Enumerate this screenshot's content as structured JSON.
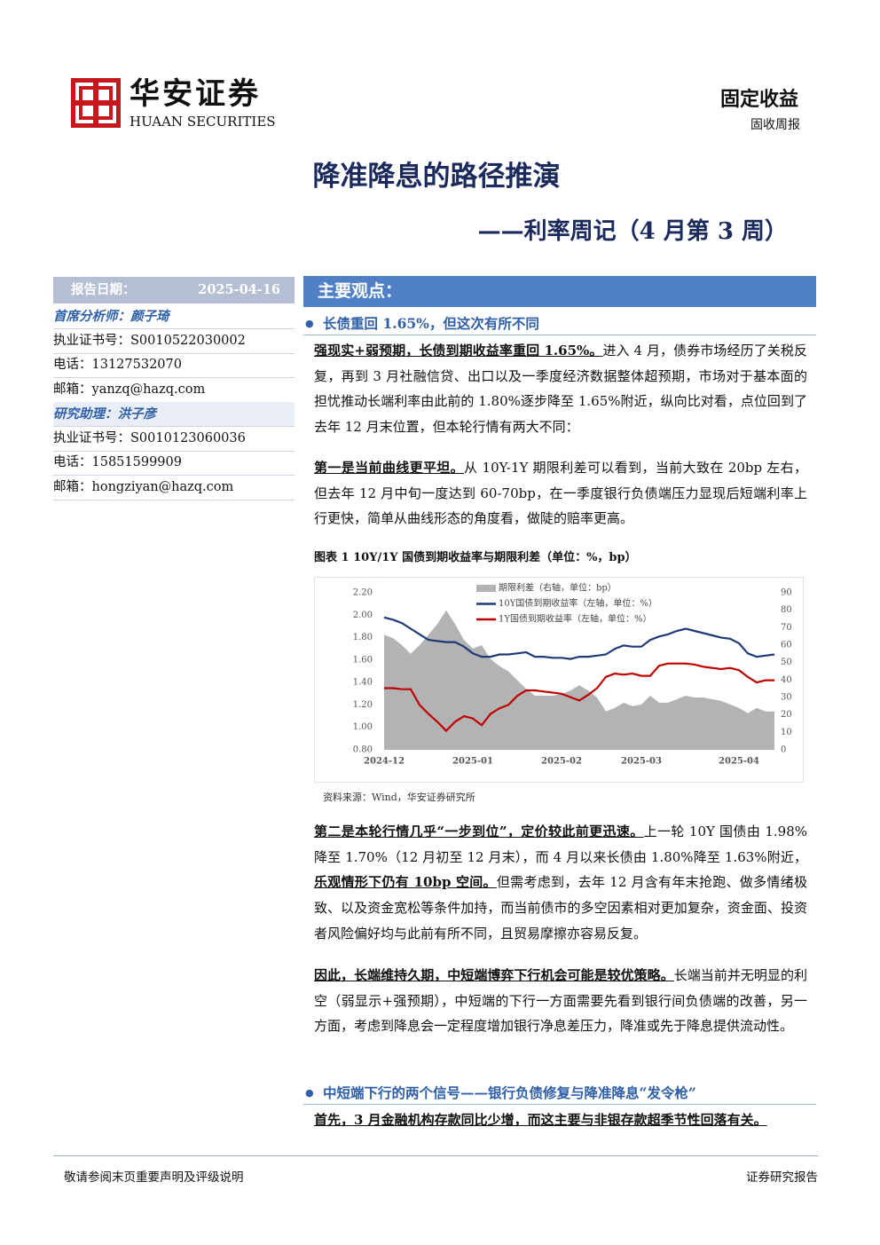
{
  "header": {
    "company_cn": "华安证券",
    "company_en": "HUAAN SECURITIES",
    "category": "固定收益",
    "report_type": "固收周报"
  },
  "title": "降准降息的路径推演",
  "subtitle": "——利率周记（4 月第 3 周）",
  "sidebar": {
    "date_label": "报告日期：",
    "date": "2025-04-16",
    "analyst": "首席分析师：颜子琦",
    "analyst_lines": [
      "执业证书号：S0010522030002",
      "电话：13127532070",
      "邮箱：yanzq@hazq.com"
    ],
    "assistant": "研究助理：洪子彦",
    "assistant_lines": [
      "执业证书号：S0010123060036",
      "电话：15851599909",
      "邮箱：hongziyan@hazq.com"
    ]
  },
  "main": {
    "heading": "主要观点：",
    "blocks": [
      {
        "heading": "长债重回 1.65%，但这次有所不同"
      },
      {
        "runs": [
          {
            "b": "强现实+弱预期，长债到期收益率重回 1.65%。"
          },
          {
            "t": "进入 4 月，债券市场经历了关税反复，再到 3 月社融信贷、出口以及一季度经济数据整体超预期，市场对于基本面的担忧推动长端利率由此前的 1.80%逐步降至 1.65%附近，纵向比对看，点位回到了去年 12 月末位置，但本轮行情有两大不同："
          }
        ]
      },
      {
        "runs": [
          {
            "b": "第一是当前曲线更平坦。"
          },
          {
            "t": "从 10Y-1Y 期限利差可以看到，当前大致在 20bp 左右，但去年 12 月中旬一度达到 60-70bp，在一季度银行负债端压力显现后短端利率上行更快，简单从曲线形态的角度看，做陡的赔率更高。"
          }
        ]
      },
      {
        "caption": "图表 1 10Y/1Y 国债到期收益率与期限利差（单位：%，bp）"
      },
      {
        "source": "资料来源：Wind，华安证券研究所"
      },
      {
        "runs": [
          {
            "b": "第二是本轮行情几乎“一步到位”，定价较此前更迅速。"
          },
          {
            "t": "上一轮 10Y 国债由 1.98%降至 1.70%（12 月初至 12 月末），而 4 月以来长债由 1.80%降至 1.63%附近，"
          },
          {
            "b": "乐观情形下仍有 10bp 空间。"
          },
          {
            "t": "但需考虑到，去年 12 月含有年末抢跑、做多情绪极致、以及资金宽松等条件加持，而当前债市的多空因素相对更加复杂，资金面、投资者风险偏好均与此前有所不同，且贸易摩擦亦容易反复。"
          }
        ]
      },
      {
        "runs": [
          {
            "b": "因此，长端维持久期，中短端博弈下行机会可能是较优策略。"
          },
          {
            "t": "长端当前并无明显的利空（弱显示+强预期），中短端的下行一方面需要先看到银行间负债端的改善，另一方面，考虑到降息会一定程度增加银行净息差压力，降准或先于降息提供流动性。"
          }
        ]
      },
      {
        "heading": "中短端下行的两个信号——银行负债修复与降准降息“发令枪”"
      },
      {
        "runs": [
          {
            "b": "首先，3 月金融机构存款同比少增，而这主要与非银存款超季节性回落有关。"
          }
        ]
      }
    ]
  },
  "chart_data": {
    "type": "line",
    "categories": [
      "2024-12",
      null,
      null,
      null,
      null,
      null,
      null,
      null,
      null,
      null,
      "2025-01",
      null,
      null,
      null,
      null,
      null,
      null,
      null,
      null,
      null,
      "2025-02",
      null,
      null,
      null,
      null,
      null,
      null,
      null,
      null,
      "2025-03",
      null,
      null,
      null,
      null,
      null,
      null,
      null,
      null,
      null,
      null,
      "2025-04",
      null,
      null,
      null,
      null
    ],
    "series": [
      {
        "name": "期限利差（右轴，单位：bp）",
        "type": "area",
        "axis": "y2",
        "color": "#b3b3b3",
        "values": [
          66,
          64,
          60,
          55,
          60,
          66,
          72,
          80,
          72,
          63,
          58,
          60,
          52,
          48,
          45,
          40,
          35,
          31,
          31,
          31,
          32,
          34,
          37,
          34,
          30,
          22,
          24,
          27,
          25,
          26,
          31,
          27,
          27,
          29,
          31,
          30,
          30,
          29,
          28,
          26,
          24,
          21,
          24,
          22,
          22
        ]
      },
      {
        "name": "10Y国债到期收益率（左轴，单位：%）",
        "color": "#1f3a78",
        "values": [
          1.98,
          1.96,
          1.93,
          1.88,
          1.83,
          1.78,
          1.77,
          1.76,
          1.76,
          1.72,
          1.66,
          1.63,
          1.63,
          1.65,
          1.65,
          1.66,
          1.67,
          1.63,
          1.63,
          1.62,
          1.62,
          1.61,
          1.63,
          1.63,
          1.64,
          1.65,
          1.7,
          1.73,
          1.72,
          1.72,
          1.78,
          1.81,
          1.83,
          1.86,
          1.88,
          1.86,
          1.84,
          1.82,
          1.8,
          1.79,
          1.75,
          1.66,
          1.63,
          1.64,
          1.65
        ]
      },
      {
        "name": "1Y国债到期收益率（左轴，单位：%）",
        "color": "#c00000",
        "values": [
          1.35,
          1.35,
          1.34,
          1.34,
          1.2,
          1.12,
          1.05,
          0.97,
          1.05,
          1.1,
          1.08,
          1.02,
          1.12,
          1.17,
          1.2,
          1.28,
          1.33,
          1.33,
          1.32,
          1.31,
          1.3,
          1.27,
          1.24,
          1.29,
          1.35,
          1.45,
          1.48,
          1.47,
          1.48,
          1.46,
          1.46,
          1.55,
          1.57,
          1.57,
          1.57,
          1.56,
          1.54,
          1.53,
          1.52,
          1.53,
          1.51,
          1.45,
          1.4,
          1.42,
          1.42
        ]
      }
    ],
    "ylim": [
      0.8,
      2.2
    ],
    "yticks": [
      {
        "value": 0.8,
        "label": "0.80"
      },
      {
        "value": 1.0,
        "label": "1.00"
      },
      {
        "value": 1.2,
        "label": "1.20"
      },
      {
        "value": 1.4,
        "label": "1.40"
      },
      {
        "value": 1.6,
        "label": "1.60"
      },
      {
        "value": 1.8,
        "label": "1.80"
      },
      {
        "value": 2.0,
        "label": "2.00"
      },
      {
        "value": 2.2,
        "label": "2.20"
      }
    ],
    "y2lim": [
      0,
      90
    ],
    "y2ticks": [
      0,
      10,
      20,
      30,
      40,
      50,
      60,
      70,
      80,
      90
    ]
  },
  "footer": {
    "left": "敬请参阅末页重要声明及评级说明",
    "right": "证券研究报告"
  }
}
